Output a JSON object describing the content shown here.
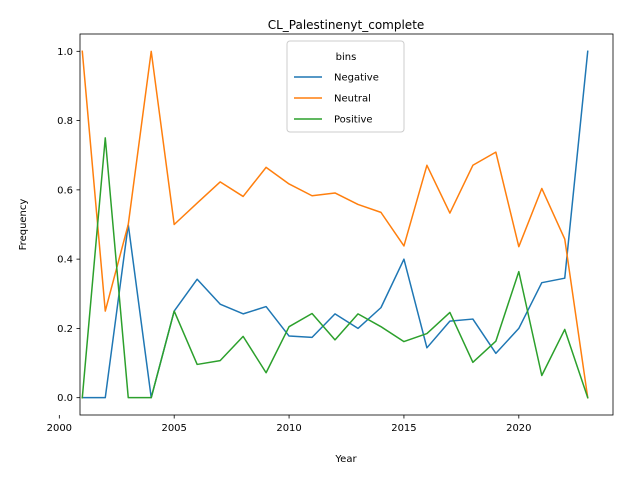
{
  "chart_data": {
    "type": "line",
    "title": "CL_Palestinenyt_complete",
    "xlabel": "Year",
    "ylabel": "Frequency",
    "xlim": [
      2000.9,
      2024.1
    ],
    "ylim": [
      -0.05,
      1.05
    ],
    "xticks": [
      2000,
      2005,
      2010,
      2015,
      2020
    ],
    "yticks": [
      0.0,
      0.2,
      0.4,
      0.6,
      0.8,
      1.0
    ],
    "legend": {
      "title": "bins",
      "placement": "top-center"
    },
    "grid": false,
    "x": [
      2001,
      2002,
      2003,
      2004,
      2005,
      2006,
      2007,
      2008,
      2009,
      2010,
      2011,
      2012,
      2013,
      2014,
      2015,
      2016,
      2017,
      2018,
      2019,
      2020,
      2021,
      2022,
      2023
    ],
    "series": [
      {
        "name": "Negative",
        "color": "#1f77b4",
        "values": [
          0.0,
          0.0,
          0.5,
          0.0,
          0.25,
          0.342,
          0.27,
          0.242,
          0.263,
          0.178,
          0.174,
          0.242,
          0.2,
          0.26,
          0.4,
          0.144,
          0.221,
          0.227,
          0.128,
          0.2,
          0.332,
          0.345,
          1.0
        ]
      },
      {
        "name": "Neutral",
        "color": "#ff7f0e",
        "values": [
          1.0,
          0.25,
          0.5,
          1.0,
          0.5,
          0.562,
          0.623,
          0.581,
          0.665,
          0.617,
          0.583,
          0.591,
          0.558,
          0.535,
          0.438,
          0.671,
          0.533,
          0.671,
          0.709,
          0.436,
          0.604,
          0.458,
          0.0
        ]
      },
      {
        "name": "Positive",
        "color": "#2ca02c",
        "values": [
          0.0,
          0.75,
          0.0,
          0.0,
          0.25,
          0.096,
          0.107,
          0.177,
          0.072,
          0.205,
          0.243,
          0.167,
          0.242,
          0.205,
          0.162,
          0.185,
          0.246,
          0.102,
          0.163,
          0.364,
          0.064,
          0.197,
          0.0
        ]
      }
    ]
  }
}
